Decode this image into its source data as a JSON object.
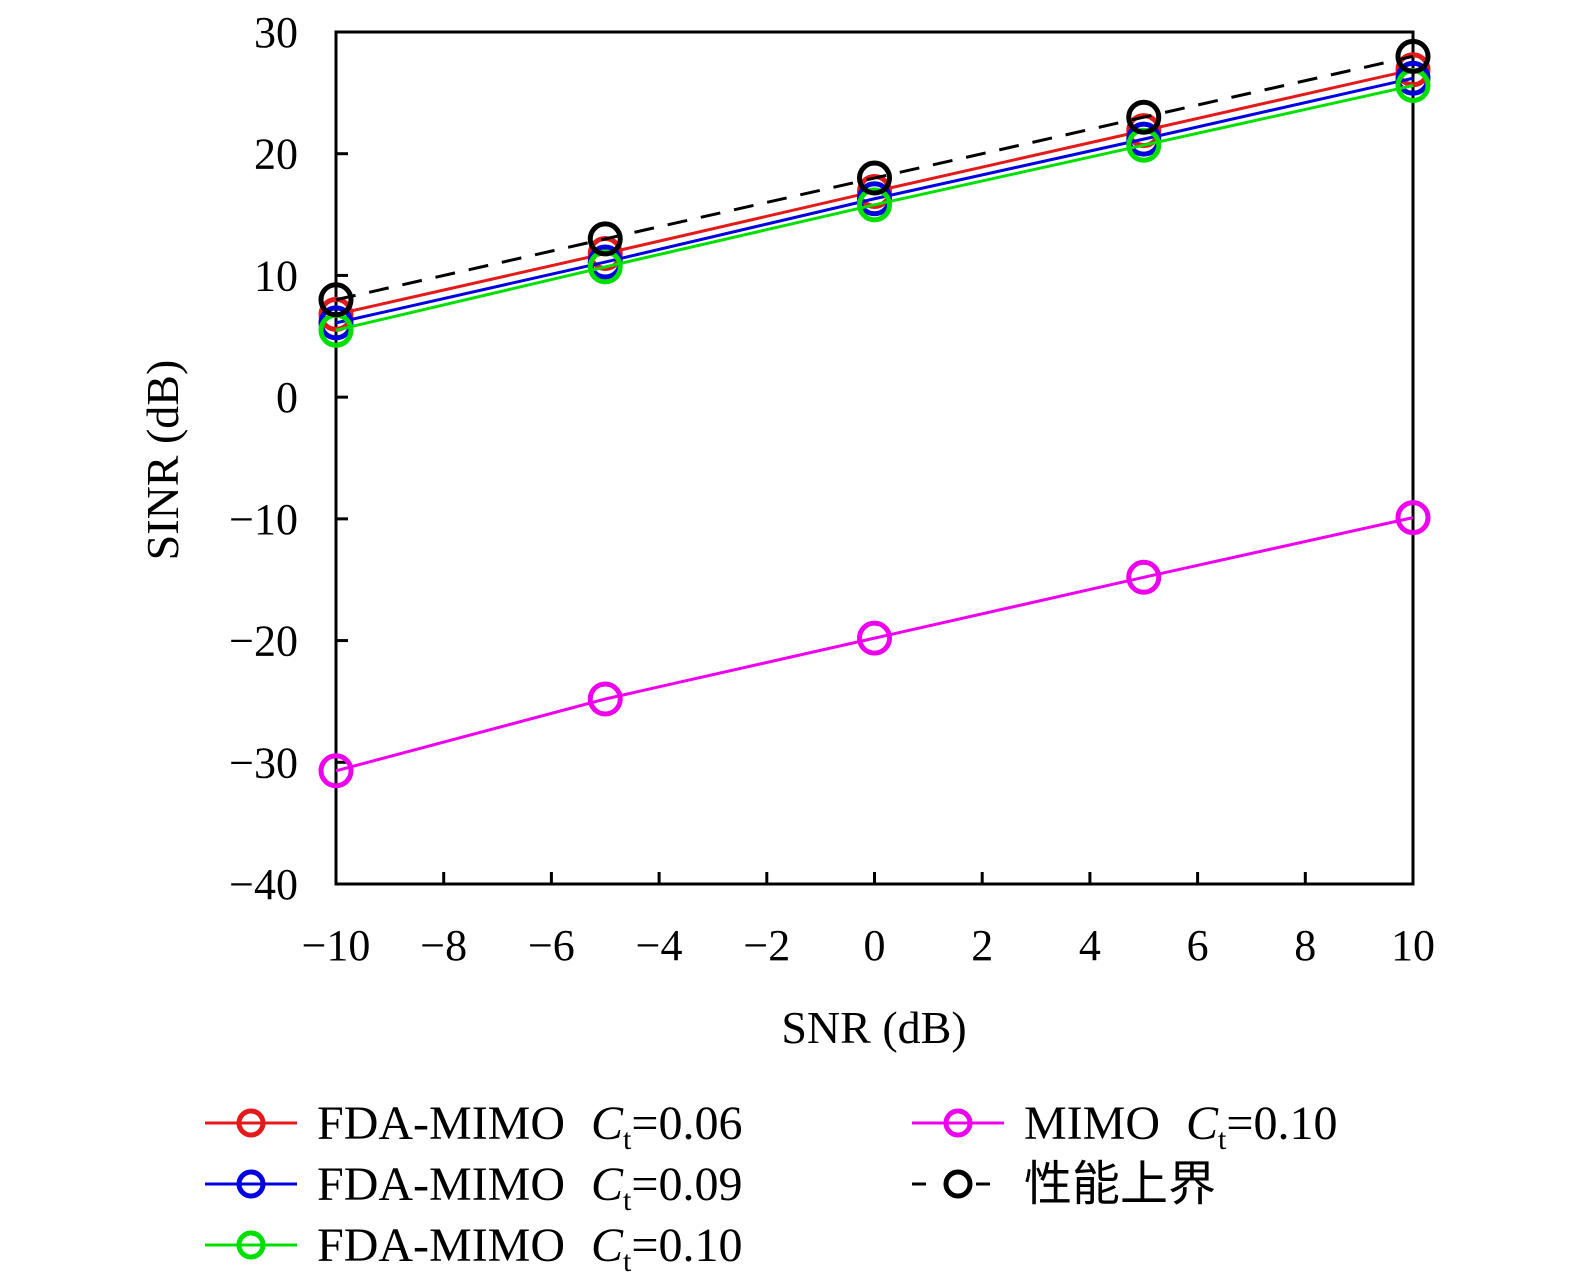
{
  "chart_data": {
    "type": "line",
    "title": "",
    "xlabel": "SNR (dB)",
    "ylabel": "SINR (dB)",
    "xlim": [
      -10,
      10
    ],
    "ylim": [
      -40,
      30
    ],
    "xticks": [
      -10,
      -8,
      -6,
      -4,
      -2,
      0,
      2,
      4,
      6,
      8,
      10
    ],
    "xtick_labels": [
      "−10",
      "−8",
      "−6",
      "−4",
      "−2",
      "0",
      "2",
      "4",
      "6",
      "8",
      "10"
    ],
    "yticks": [
      -40,
      -30,
      -20,
      -10,
      0,
      10,
      20,
      30
    ],
    "ytick_labels": [
      "−40",
      "−30",
      "−20",
      "−10",
      "0",
      "10",
      "20",
      "30"
    ],
    "grid": false,
    "legend_position": "bottom",
    "x": [
      -10,
      -5,
      0,
      5,
      10
    ],
    "series": [
      {
        "name": "FDA-MIMO",
        "param": "C",
        "sub": "t",
        "value_text": "=0.06",
        "color": "#e41a1a",
        "dash": false,
        "values": [
          6.8,
          11.8,
          16.9,
          21.9,
          26.9
        ]
      },
      {
        "name": "FDA-MIMO",
        "param": "C",
        "sub": "t",
        "value_text": "=0.09",
        "color": "#0000e0",
        "dash": false,
        "values": [
          6.1,
          11.1,
          16.3,
          21.2,
          26.2
        ]
      },
      {
        "name": "FDA-MIMO",
        "param": "C",
        "sub": "t",
        "value_text": "=0.10",
        "color": "#00e000",
        "dash": false,
        "values": [
          5.5,
          10.7,
          15.8,
          20.7,
          25.6
        ]
      },
      {
        "name": "MIMO",
        "param": "C",
        "sub": "t",
        "value_text": "=0.10",
        "color": "#ee00ee",
        "dash": false,
        "values": [
          -30.7,
          -24.8,
          -19.8,
          -14.8,
          -9.9
        ]
      },
      {
        "name": "性能上界",
        "param": "",
        "sub": "",
        "value_text": "",
        "color": "#000000",
        "dash": true,
        "values": [
          8.0,
          13.0,
          18.0,
          23.0,
          28.0
        ]
      }
    ]
  }
}
